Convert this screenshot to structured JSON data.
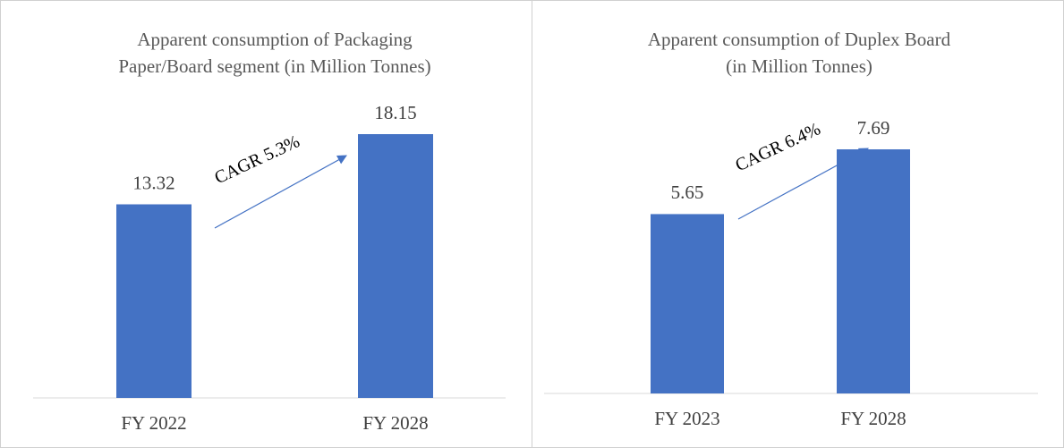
{
  "chart_data": [
    {
      "type": "bar",
      "title": [
        "Apparent consumption of Packaging",
        "Paper/Board segment (in Million Tonnes)"
      ],
      "categories": [
        "FY 2022",
        "FY 2028"
      ],
      "values": [
        13.32,
        18.15
      ],
      "color": "#4472c4",
      "annotation": "CAGR 5.3%"
    },
    {
      "type": "bar",
      "title": [
        "Apparent consumption of Duplex Board",
        "(in Million Tonnes)"
      ],
      "categories": [
        "FY 2023",
        "FY 2028"
      ],
      "values": [
        5.65,
        7.69
      ],
      "color": "#4472c4",
      "annotation": "CAGR 6.4%"
    }
  ]
}
